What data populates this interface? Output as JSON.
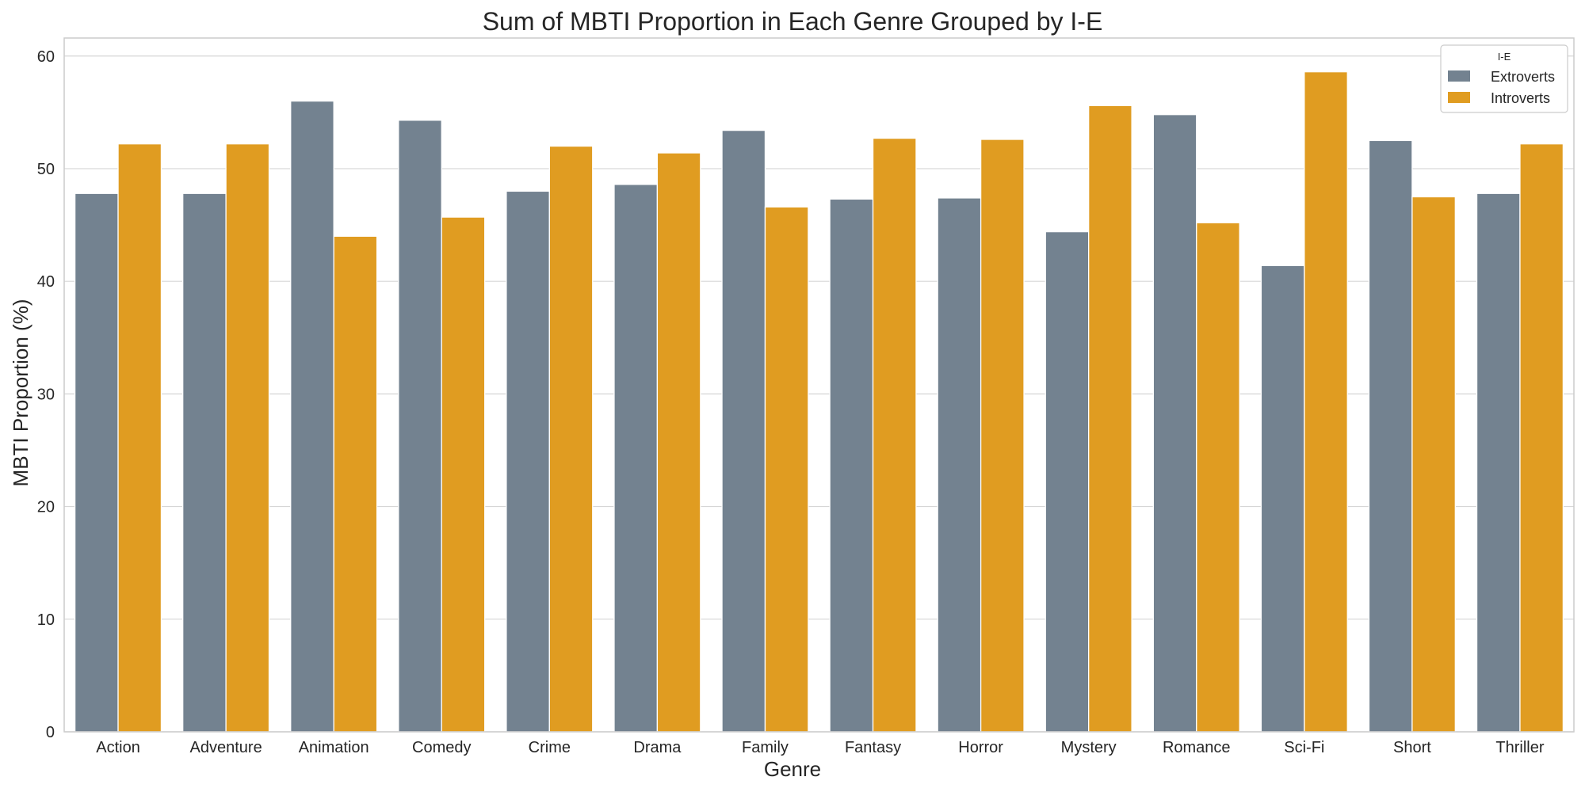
{
  "chart_data": {
    "type": "bar",
    "title": "Sum of MBTI Proportion in Each Genre Grouped by I-E",
    "xlabel": "Genre",
    "ylabel": "MBTI Proportion (%)",
    "ylim": [
      0,
      61.6
    ],
    "yticks": [
      0,
      10,
      20,
      30,
      40,
      50,
      60
    ],
    "grid": true,
    "legend": {
      "title": "I-E",
      "position": "top-right"
    },
    "categories": [
      "Action",
      "Adventure",
      "Animation",
      "Comedy",
      "Crime",
      "Drama",
      "Family",
      "Fantasy",
      "Horror",
      "Mystery",
      "Romance",
      "Sci-Fi",
      "Short",
      "Thriller"
    ],
    "series": [
      {
        "name": "Extroverts",
        "color": "#738290",
        "values": [
          47.8,
          47.8,
          56.0,
          54.3,
          48.0,
          48.6,
          53.4,
          47.3,
          47.4,
          44.4,
          54.8,
          41.4,
          52.5,
          47.8
        ]
      },
      {
        "name": "Introverts",
        "color": "#E09C21",
        "values": [
          52.2,
          52.2,
          44.0,
          45.7,
          52.0,
          51.4,
          46.6,
          52.7,
          52.6,
          55.6,
          45.2,
          58.6,
          47.5,
          52.2
        ]
      }
    ]
  }
}
